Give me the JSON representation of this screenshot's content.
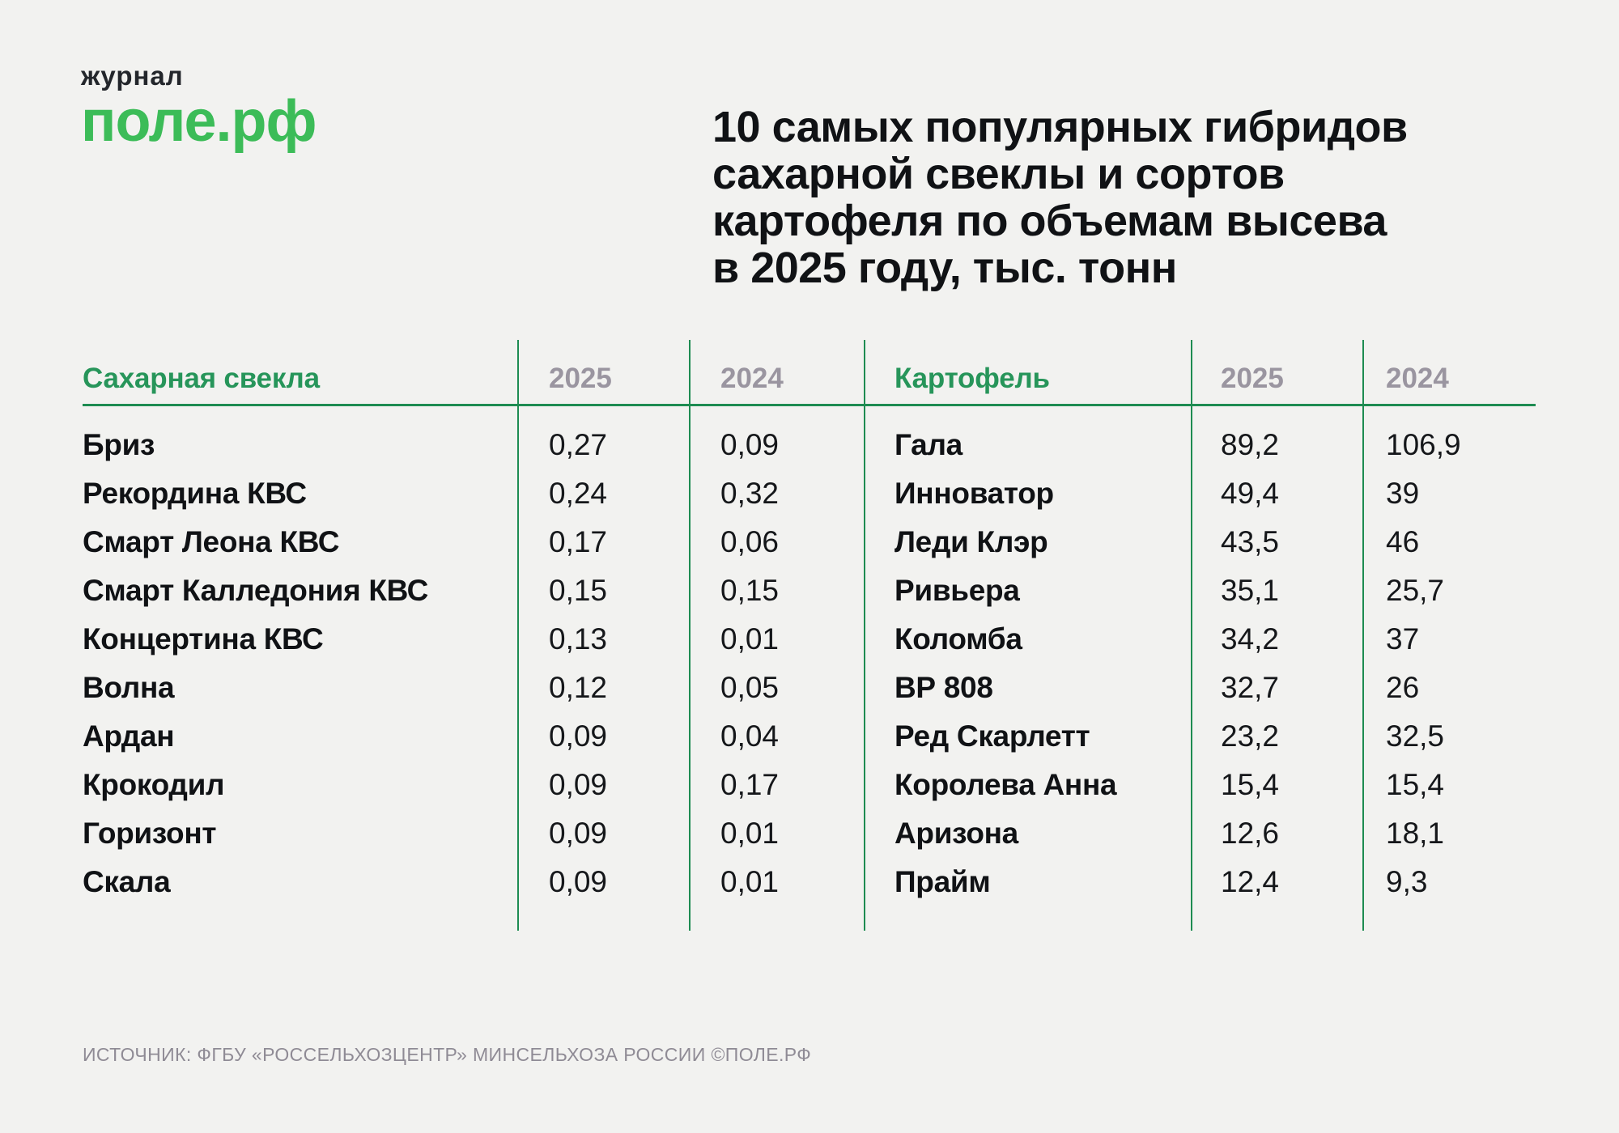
{
  "logo": {
    "top_text": "журнал",
    "brand_text": "поле.рф",
    "brand_color": "#3CBC58"
  },
  "title": {
    "text": "10 самых популярных гибридов\nсахарной свеклы и сортов\nкартофеля по объемам высева\nв 2025 году, тыс. тонн"
  },
  "table": {
    "accent_green": "#27955A",
    "line_green": "#1E8C52",
    "year_gray": "#9A95A0",
    "left": {
      "header": "Сахарная свекла",
      "year1": "2025",
      "year2": "2024",
      "rows": [
        {
          "name": "Бриз",
          "v2025": "0,27",
          "v2024": "0,09"
        },
        {
          "name": "Рекордина КВС",
          "v2025": "0,24",
          "v2024": "0,32"
        },
        {
          "name": "Смарт Леона КВС",
          "v2025": "0,17",
          "v2024": "0,06"
        },
        {
          "name": "Смарт Калледония КВС",
          "v2025": "0,15",
          "v2024": "0,15"
        },
        {
          "name": "Концертина КВС",
          "v2025": "0,13",
          "v2024": "0,01"
        },
        {
          "name": "Волна",
          "v2025": "0,12",
          "v2024": "0,05"
        },
        {
          "name": "Ардан",
          "v2025": "0,09",
          "v2024": "0,04"
        },
        {
          "name": "Крокодил",
          "v2025": "0,09",
          "v2024": "0,17"
        },
        {
          "name": "Горизонт",
          "v2025": "0,09",
          "v2024": "0,01"
        },
        {
          "name": "Скала",
          "v2025": "0,09",
          "v2024": "0,01"
        }
      ]
    },
    "right": {
      "header": "Картофель",
      "year1": "2025",
      "year2": "2024",
      "rows": [
        {
          "name": "Гала",
          "v2025": "89,2",
          "v2024": "106,9"
        },
        {
          "name": "Инноватор",
          "v2025": "49,4",
          "v2024": "39"
        },
        {
          "name": "Леди Клэр",
          "v2025": "43,5",
          "v2024": "46"
        },
        {
          "name": "Ривьера",
          "v2025": "35,1",
          "v2024": "25,7"
        },
        {
          "name": "Коломба",
          "v2025": "34,2",
          "v2024": "37"
        },
        {
          "name": "ВР 808",
          "v2025": "32,7",
          "v2024": "26"
        },
        {
          "name": "Ред Скарлетт",
          "v2025": "23,2",
          "v2024": "32,5"
        },
        {
          "name": "Королева Анна",
          "v2025": "15,4",
          "v2024": "15,4"
        },
        {
          "name": "Аризона",
          "v2025": "12,6",
          "v2024": "18,1"
        },
        {
          "name": "Прайм",
          "v2025": "12,4",
          "v2024": "9,3"
        }
      ]
    }
  },
  "footer": {
    "source": "ИСТОЧНИК: ФГБУ «РОССЕЛЬХОЗЦЕНТР» МИНСЕЛЬХОЗА РОССИИ ©ПОЛЕ.РФ"
  },
  "chart_data": {
    "type": "table",
    "title": "10 самых популярных гибридов сахарной свеклы и сортов картофеля по объемам высева в 2025 году, тыс. тонн",
    "unit": "тыс. тонн",
    "tables": [
      {
        "name": "Сахарная свекла",
        "columns": [
          "2025",
          "2024"
        ],
        "rows": [
          [
            "Бриз",
            0.27,
            0.09
          ],
          [
            "Рекордина КВС",
            0.24,
            0.32
          ],
          [
            "Смарт Леона КВС",
            0.17,
            0.06
          ],
          [
            "Смарт Калледония КВС",
            0.15,
            0.15
          ],
          [
            "Концертина КВС",
            0.13,
            0.01
          ],
          [
            "Волна",
            0.12,
            0.05
          ],
          [
            "Ардан",
            0.09,
            0.04
          ],
          [
            "Крокодил",
            0.09,
            0.17
          ],
          [
            "Горизонт",
            0.09,
            0.01
          ],
          [
            "Скала",
            0.09,
            0.01
          ]
        ]
      },
      {
        "name": "Картофель",
        "columns": [
          "2025",
          "2024"
        ],
        "rows": [
          [
            "Гала",
            89.2,
            106.9
          ],
          [
            "Инноватор",
            49.4,
            39
          ],
          [
            "Леди Клэр",
            43.5,
            46
          ],
          [
            "Ривьера",
            35.1,
            25.7
          ],
          [
            "Коломба",
            34.2,
            37
          ],
          [
            "ВР 808",
            32.7,
            26
          ],
          [
            "Ред Скарлетт",
            23.2,
            32.5
          ],
          [
            "Королева Анна",
            15.4,
            15.4
          ],
          [
            "Аризона",
            12.6,
            18.1
          ],
          [
            "Прайм",
            12.4,
            9.3
          ]
        ]
      }
    ],
    "source": "ФГБУ «Россельхозцентр» Минсельхоза России ©поле.рф"
  }
}
